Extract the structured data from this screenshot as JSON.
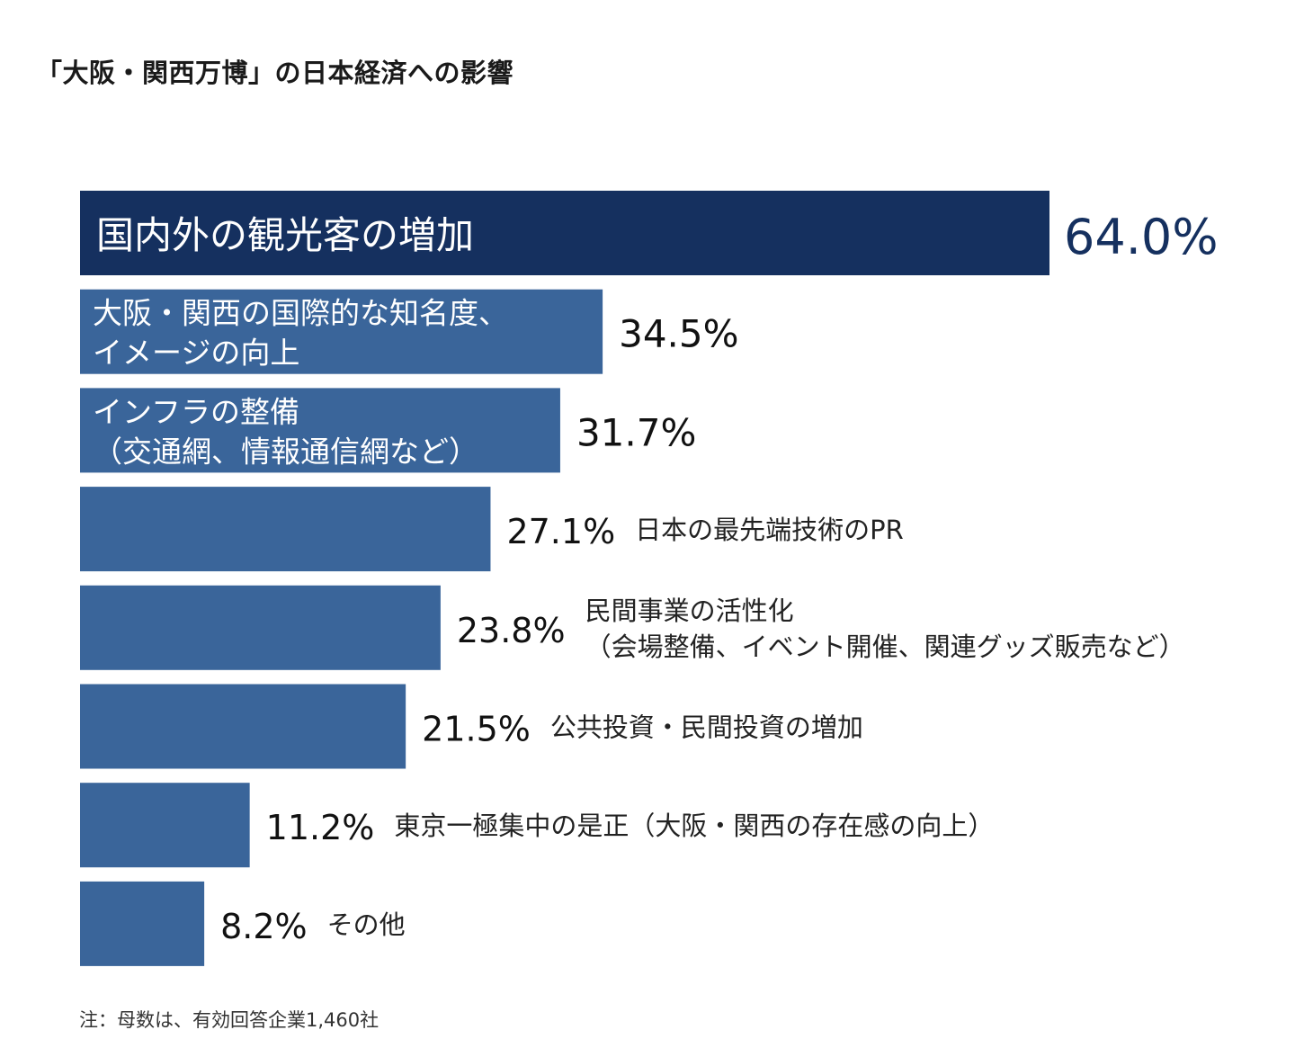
{
  "title": "「大阪・関西万博」の日本経済への影響",
  "note": "注：母数は、有効回答企業1,460社",
  "colors": {
    "highlight": "#15305f",
    "bar": "#3a659a",
    "inside_text": "#ffffff",
    "value_highlight": "#15305f",
    "value": "#111111",
    "label": "#222222"
  },
  "chart_data": {
    "type": "bar",
    "orientation": "horizontal",
    "unit": "%",
    "xlim": [
      0,
      64
    ],
    "grid": false,
    "categories": [
      [
        "国内外の観光客の増加"
      ],
      [
        "大阪・関西の国際的な知名度、",
        "イメージの向上"
      ],
      [
        "インフラの整備",
        "（交通網、情報通信網など）"
      ],
      [
        "日本の最先端技術のPR"
      ],
      [
        "民間事業の活性化",
        "（会場整備、イベント開催、関連グッズ販売など）"
      ],
      [
        "公共投資・民間投資の増加"
      ],
      [
        "東京一極集中の是正（大阪・関西の存在感の向上）"
      ],
      [
        "その他"
      ]
    ],
    "values": [
      64.0,
      34.5,
      31.7,
      27.1,
      23.8,
      21.5,
      11.2,
      8.2
    ],
    "value_labels": [
      "64.0%",
      "34.5%",
      "31.7%",
      "27.1%",
      "23.8%",
      "21.5%",
      "11.2%",
      "8.2%"
    ]
  }
}
